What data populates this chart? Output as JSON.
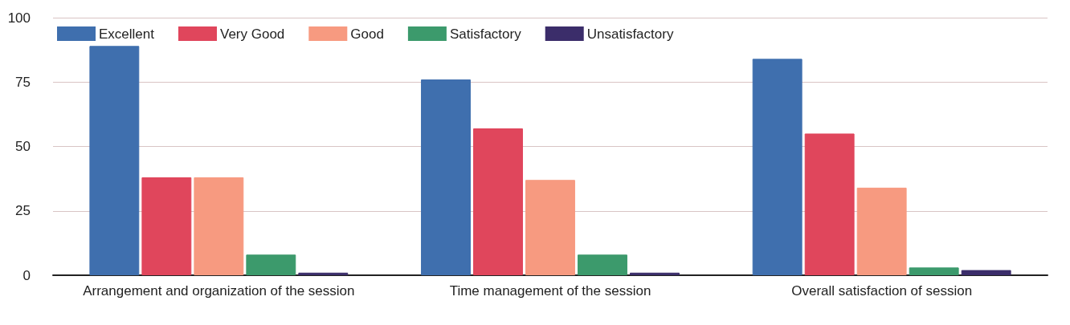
{
  "chart_data": {
    "type": "bar",
    "categories": [
      "Arrangement and organization of the session",
      "Time management of the session",
      "Overall satisfaction of session"
    ],
    "series": [
      {
        "name": "Excellent",
        "color": "#3f6fae",
        "values": [
          89,
          76,
          84
        ]
      },
      {
        "name": "Very Good",
        "color": "#e0465c",
        "values": [
          38,
          57,
          55
        ]
      },
      {
        "name": "Good",
        "color": "#f79a80",
        "values": [
          38,
          37,
          34
        ]
      },
      {
        "name": "Satisfactory",
        "color": "#3c9a6c",
        "values": [
          8,
          8,
          3
        ]
      },
      {
        "name": "Unsatisfactory",
        "color": "#3b2d6a",
        "values": [
          1,
          1,
          2
        ]
      }
    ],
    "ylim": [
      0,
      100
    ],
    "yticks": [
      0,
      25,
      50,
      75,
      100
    ],
    "grid": "y",
    "legend": "top left"
  }
}
